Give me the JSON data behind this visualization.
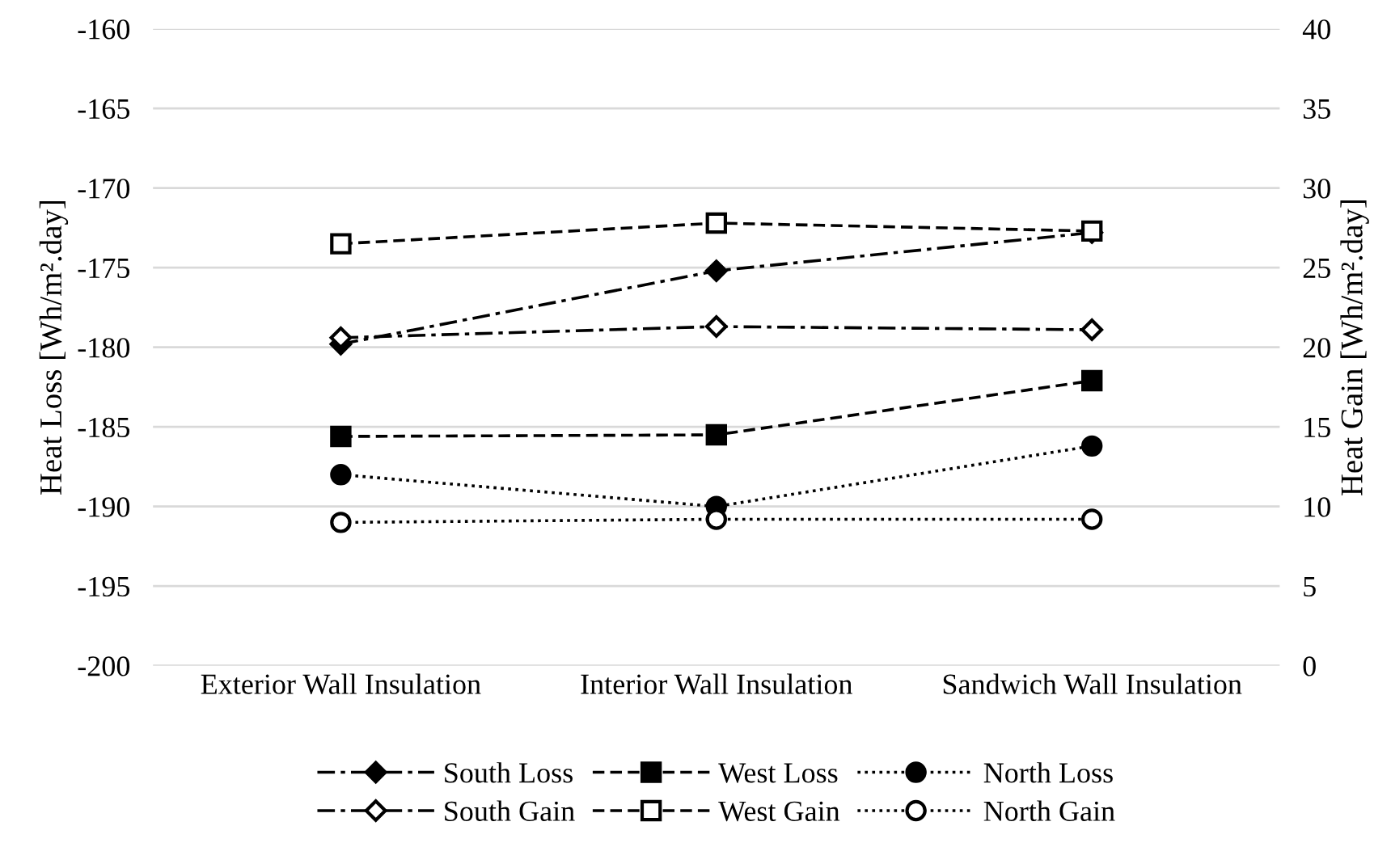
{
  "chart_data": {
    "type": "line",
    "categories": [
      "Exterior Wall Insulation",
      "Interior Wall Insulation",
      "Sandwich Wall Insulation"
    ],
    "ylabel": "Heat Loss [Wh/m².day]",
    "y2label": "Heat Gain [Wh/m².day]",
    "ylim": [
      -200,
      -160
    ],
    "yticks": [
      -200,
      -195,
      -190,
      -185,
      -180,
      -175,
      -170,
      -165,
      -160
    ],
    "y2lim": [
      0,
      40
    ],
    "y2ticks": [
      0,
      5,
      10,
      15,
      20,
      25,
      30,
      35,
      40
    ],
    "grid": "y",
    "legend": "bottom",
    "series": [
      {
        "name": "South Loss",
        "color": "#000000",
        "marker": "diamond",
        "line_style": "dashdot",
        "values": [
          -179.8,
          -175.2,
          -172.8
        ]
      },
      {
        "name": "West Loss",
        "color": "#000000",
        "marker": "square",
        "line_style": "dashed",
        "values": [
          -185.6,
          -185.5,
          -182.1
        ]
      },
      {
        "name": "North Loss",
        "color": "#000000",
        "marker": "circle",
        "line_style": "dotted",
        "values": [
          -188.0,
          -190.0,
          -186.2
        ]
      },
      {
        "name": "South Gain",
        "color": "#000000",
        "marker": "diamond",
        "line_style": "dashdot",
        "axis": "y2",
        "values": [
          20.6,
          21.3,
          21.1
        ]
      },
      {
        "name": "West Gain",
        "color": "#000000",
        "marker": "square",
        "line_style": "dashed",
        "axis": "y2",
        "values": [
          26.5,
          27.8,
          27.3
        ]
      },
      {
        "name": "North Gain",
        "color": "#000000",
        "marker": "circle",
        "line_style": "dotted",
        "axis": "y2",
        "values": [
          9.0,
          9.2,
          9.2
        ]
      }
    ]
  }
}
